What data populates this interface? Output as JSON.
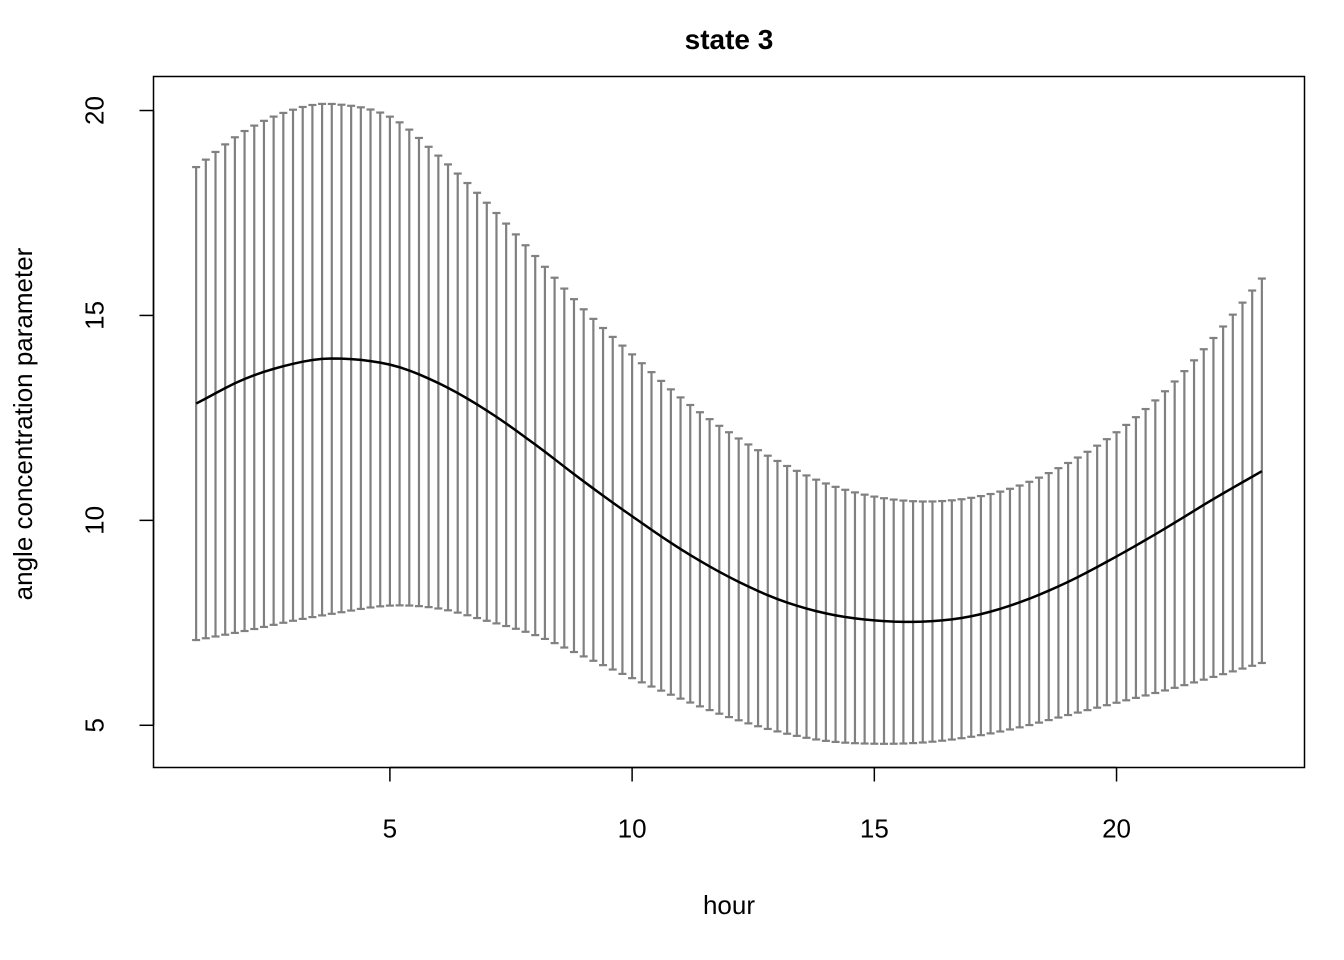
{
  "chart_data": {
    "type": "line",
    "title": "state 3",
    "xlabel": "hour",
    "ylabel": "angle concentration parameter",
    "xlim": [
      0.12,
      23.88
    ],
    "ylim": [
      3.97,
      20.83
    ],
    "x_ticks": [
      5,
      10,
      15,
      20
    ],
    "y_ticks": [
      5,
      10,
      15,
      20
    ],
    "x_tick_labels": [
      "5",
      "10",
      "15",
      "20"
    ],
    "y_tick_labels": [
      "5",
      "10",
      "15",
      "20"
    ],
    "grid": false,
    "legend": "none",
    "x_range": [
      1,
      23
    ],
    "n_points": 111,
    "anchors": [
      {
        "x": 1.0,
        "mean": 12.85,
        "lower": 7.08,
        "upper": 18.62
      },
      {
        "x": 2.0,
        "mean": 13.45,
        "lower": 7.3,
        "upper": 19.5
      },
      {
        "x": 3.0,
        "mean": 13.82,
        "lower": 7.55,
        "upper": 20.02
      },
      {
        "x": 3.8,
        "mean": 13.95,
        "lower": 7.72,
        "upper": 20.16
      },
      {
        "x": 5.0,
        "mean": 13.8,
        "lower": 7.92,
        "upper": 19.85
      },
      {
        "x": 6.0,
        "mean": 13.35,
        "lower": 7.85,
        "upper": 18.9
      },
      {
        "x": 7.0,
        "mean": 12.68,
        "lower": 7.55,
        "upper": 17.75
      },
      {
        "x": 8.0,
        "mean": 11.85,
        "lower": 7.2,
        "upper": 16.45
      },
      {
        "x": 9.0,
        "mean": 10.95,
        "lower": 6.68,
        "upper": 15.15
      },
      {
        "x": 10.0,
        "mean": 10.1,
        "lower": 6.15,
        "upper": 14.05
      },
      {
        "x": 11.0,
        "mean": 9.3,
        "lower": 5.65,
        "upper": 13.0
      },
      {
        "x": 12.0,
        "mean": 8.62,
        "lower": 5.2,
        "upper": 12.15
      },
      {
        "x": 13.0,
        "mean": 8.08,
        "lower": 4.85,
        "upper": 11.45
      },
      {
        "x": 14.0,
        "mean": 7.73,
        "lower": 4.62,
        "upper": 10.9
      },
      {
        "x": 15.0,
        "mean": 7.56,
        "lower": 4.55,
        "upper": 10.58
      },
      {
        "x": 16.0,
        "mean": 7.53,
        "lower": 4.58,
        "upper": 10.46
      },
      {
        "x": 17.0,
        "mean": 7.66,
        "lower": 4.72,
        "upper": 10.55
      },
      {
        "x": 18.0,
        "mean": 8.0,
        "lower": 4.95,
        "upper": 10.85
      },
      {
        "x": 19.0,
        "mean": 8.5,
        "lower": 5.25,
        "upper": 11.4
      },
      {
        "x": 20.0,
        "mean": 9.12,
        "lower": 5.55,
        "upper": 12.15
      },
      {
        "x": 21.0,
        "mean": 9.8,
        "lower": 5.85,
        "upper": 13.15
      },
      {
        "x": 22.0,
        "mean": 10.52,
        "lower": 6.18,
        "upper": 14.45
      },
      {
        "x": 23.0,
        "mean": 11.2,
        "lower": 6.52,
        "upper": 15.9
      }
    ],
    "colors": {
      "mean_line": "#000000",
      "error_bars": "#808080",
      "frame": "#000000"
    }
  }
}
